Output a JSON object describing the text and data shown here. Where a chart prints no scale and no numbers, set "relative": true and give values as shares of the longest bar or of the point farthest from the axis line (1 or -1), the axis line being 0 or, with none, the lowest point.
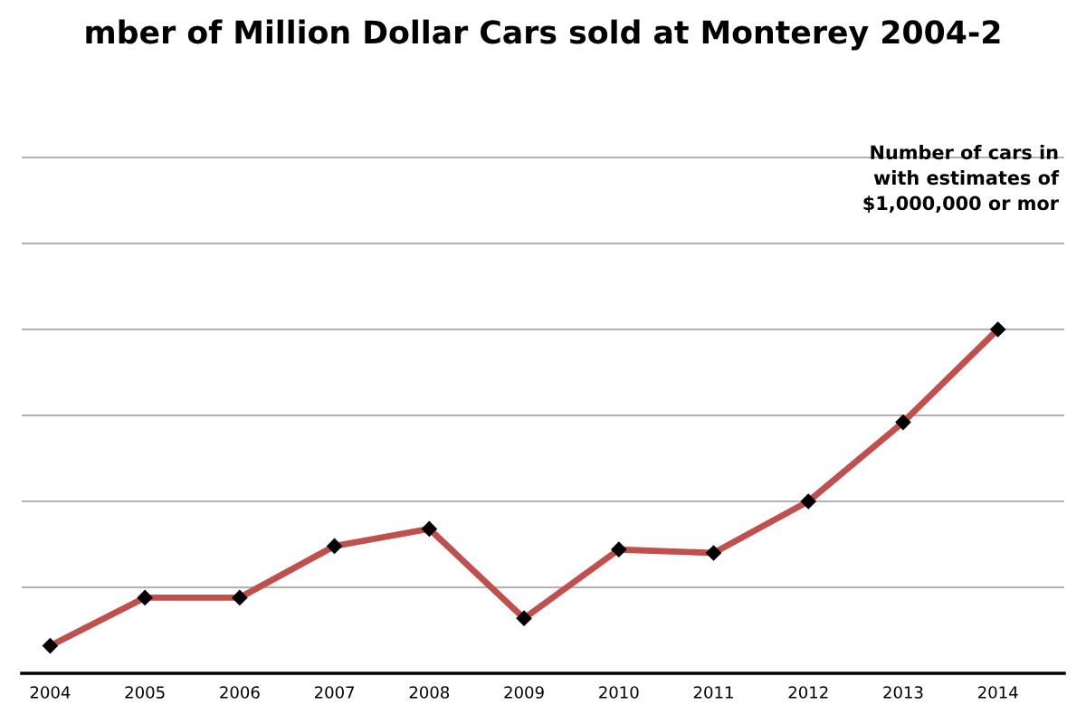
{
  "chart_data": {
    "type": "line",
    "title": "mber of Million Dollar Cars sold at Monterey 2004-2",
    "categories": [
      "2004",
      "2005",
      "2006",
      "2007",
      "2008",
      "2009",
      "2010",
      "2011",
      "2012",
      "2013",
      "2014"
    ],
    "series": [
      {
        "color": "#c0504d",
        "values": [
          0.08,
          0.22,
          0.22,
          0.37,
          0.42,
          0.16,
          0.36,
          0.35,
          0.5,
          0.73,
          1
        ]
      }
    ],
    "relative": true,
    "marker": "diamond",
    "grid": "y",
    "annotations": [
      "Number of cars in\nwith estimates of\n$1,000,000 or mor"
    ]
  }
}
